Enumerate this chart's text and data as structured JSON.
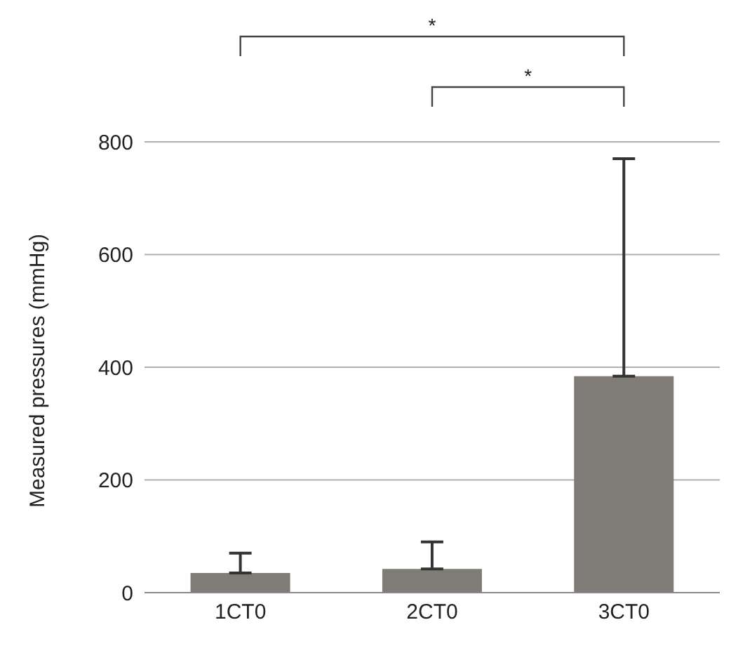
{
  "chart_data": {
    "type": "bar",
    "ylabel": "Measured pressures (mmHg)",
    "categories": [
      "1CT0",
      "2CT0",
      "3CT0"
    ],
    "values": [
      35,
      42,
      384
    ],
    "color": "#7f7c77",
    "errors": [
      [
        35,
        70
      ],
      [
        42,
        90
      ],
      [
        384,
        770
      ]
    ],
    "ylim": [
      0,
      800
    ],
    "yticks": [
      0,
      200,
      400,
      600,
      800
    ],
    "grid": "y",
    "annotations": [
      "*",
      "*"
    ]
  }
}
